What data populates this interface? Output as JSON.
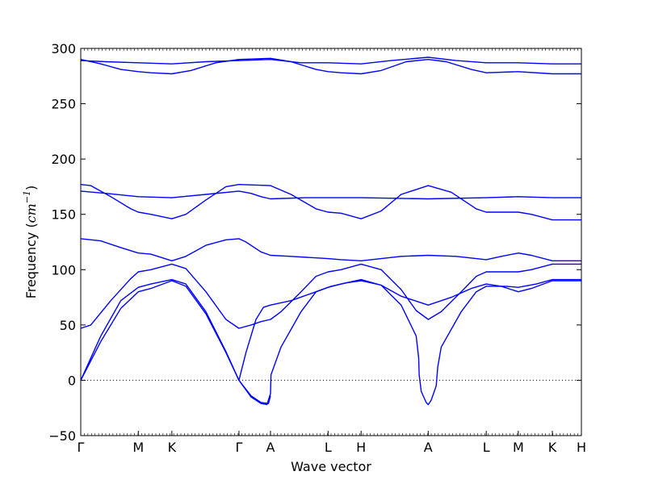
{
  "chart_data": {
    "type": "line",
    "title": "",
    "xlabel": "Wave vector",
    "ylabel": "Frequency (cm⁻¹)",
    "ylabel_prefix": "Frequency (",
    "ylabel_unit": "cm",
    "ylabel_exp": "−1",
    "ylabel_suffix": ")",
    "ylim": [
      -50,
      300
    ],
    "xlim": [
      0,
      1
    ],
    "yticks": [
      -50,
      0,
      50,
      100,
      150,
      200,
      250,
      300
    ],
    "xticks": [
      {
        "label": "Γ",
        "x": 0.0
      },
      {
        "label": "M",
        "x": 0.115
      },
      {
        "label": "K",
        "x": 0.182
      },
      {
        "label": "Γ",
        "x": 0.316
      },
      {
        "label": "A",
        "x": 0.379
      },
      {
        "label": "L",
        "x": 0.494
      },
      {
        "label": "H",
        "x": 0.56
      },
      {
        "label": "A",
        "x": 0.694
      },
      {
        "label": "L",
        "x": 0.81
      },
      {
        "label": "M",
        "x": 0.874
      },
      {
        "label": "K",
        "x": 0.942
      },
      {
        "label": "H",
        "x": 1.0
      }
    ],
    "zero_line": true,
    "grid": false,
    "line_color": "#0000ff",
    "series": [
      {
        "values": [
          [
            0,
            0
          ],
          [
            0.04,
            35
          ],
          [
            0.08,
            65
          ],
          [
            0.115,
            80
          ],
          [
            0.14,
            83
          ],
          [
            0.182,
            90
          ],
          [
            0.21,
            85
          ],
          [
            0.25,
            60
          ],
          [
            0.29,
            25
          ],
          [
            0.316,
            0
          ],
          [
            0.34,
            -14
          ],
          [
            0.36,
            -20
          ],
          [
            0.375,
            -21
          ],
          [
            0.379,
            -14
          ]
        ]
      },
      {
        "values": [
          [
            0,
            0
          ],
          [
            0.04,
            40
          ],
          [
            0.08,
            72
          ],
          [
            0.115,
            84
          ],
          [
            0.14,
            87
          ],
          [
            0.182,
            91
          ],
          [
            0.21,
            87
          ],
          [
            0.25,
            62
          ],
          [
            0.29,
            26
          ],
          [
            0.316,
            0
          ],
          [
            0.34,
            -15
          ],
          [
            0.36,
            -21
          ],
          [
            0.372,
            -22
          ],
          [
            0.379,
            -12
          ],
          [
            0.38,
            5
          ],
          [
            0.4,
            30
          ],
          [
            0.44,
            62
          ],
          [
            0.47,
            80
          ],
          [
            0.494,
            84
          ],
          [
            0.52,
            87
          ],
          [
            0.56,
            91
          ],
          [
            0.6,
            86
          ],
          [
            0.64,
            68
          ],
          [
            0.67,
            40
          ],
          [
            0.675,
            20
          ],
          [
            0.676,
            5
          ],
          [
            0.68,
            -10
          ],
          [
            0.69,
            -20
          ],
          [
            0.694,
            -22
          ],
          [
            0.7,
            -18
          ],
          [
            0.71,
            -5
          ],
          [
            0.713,
            12
          ],
          [
            0.72,
            30
          ],
          [
            0.76,
            62
          ],
          [
            0.79,
            80
          ],
          [
            0.81,
            85
          ],
          [
            0.85,
            85
          ],
          [
            0.874,
            84
          ],
          [
            0.91,
            87
          ],
          [
            0.942,
            91
          ],
          [
            1.0,
            91
          ]
        ]
      },
      {
        "values": [
          [
            0,
            47
          ],
          [
            0.02,
            50
          ],
          [
            0.06,
            72
          ],
          [
            0.1,
            92
          ],
          [
            0.115,
            98
          ],
          [
            0.14,
            100
          ],
          [
            0.182,
            105
          ],
          [
            0.21,
            101
          ],
          [
            0.25,
            80
          ],
          [
            0.29,
            55
          ],
          [
            0.316,
            47
          ],
          [
            0.34,
            50
          ],
          [
            0.36,
            53
          ],
          [
            0.379,
            55
          ],
          [
            0.4,
            62
          ],
          [
            0.44,
            80
          ],
          [
            0.47,
            94
          ],
          [
            0.494,
            98
          ],
          [
            0.52,
            100
          ],
          [
            0.56,
            105
          ],
          [
            0.6,
            100
          ],
          [
            0.64,
            82
          ],
          [
            0.67,
            63
          ],
          [
            0.694,
            55
          ],
          [
            0.72,
            62
          ],
          [
            0.76,
            80
          ],
          [
            0.79,
            94
          ],
          [
            0.81,
            98
          ],
          [
            0.874,
            98
          ],
          [
            0.9,
            100
          ],
          [
            0.942,
            105
          ],
          [
            1.0,
            105
          ]
        ]
      },
      {
        "values": [
          [
            0.316,
            0
          ],
          [
            0.33,
            25
          ],
          [
            0.35,
            55
          ],
          [
            0.365,
            66
          ],
          [
            0.379,
            68
          ],
          [
            0.42,
            72
          ],
          [
            0.47,
            80
          ],
          [
            0.5,
            85
          ],
          [
            0.53,
            88
          ],
          [
            0.56,
            90
          ],
          [
            0.6,
            86
          ],
          [
            0.64,
            76
          ],
          [
            0.694,
            68
          ],
          [
            0.74,
            75
          ],
          [
            0.78,
            83
          ],
          [
            0.81,
            87
          ],
          [
            0.84,
            85
          ],
          [
            0.874,
            80
          ],
          [
            0.9,
            83
          ],
          [
            0.942,
            90
          ],
          [
            1.0,
            90
          ]
        ]
      },
      {
        "values": [
          [
            0,
            128
          ],
          [
            0.04,
            126
          ],
          [
            0.08,
            120
          ],
          [
            0.115,
            115
          ],
          [
            0.14,
            114
          ],
          [
            0.182,
            108
          ],
          [
            0.21,
            112
          ],
          [
            0.25,
            122
          ],
          [
            0.29,
            127
          ],
          [
            0.316,
            128
          ],
          [
            0.33,
            125
          ],
          [
            0.36,
            116
          ],
          [
            0.379,
            113
          ],
          [
            0.42,
            112
          ],
          [
            0.494,
            110
          ],
          [
            0.52,
            109
          ],
          [
            0.56,
            108
          ],
          [
            0.6,
            110
          ],
          [
            0.64,
            112
          ],
          [
            0.694,
            113
          ],
          [
            0.75,
            112
          ],
          [
            0.81,
            109
          ],
          [
            0.84,
            112
          ],
          [
            0.874,
            115
          ],
          [
            0.9,
            113
          ],
          [
            0.942,
            108
          ],
          [
            1.0,
            108
          ]
        ]
      },
      {
        "values": [
          [
            0,
            177
          ],
          [
            0.02,
            176
          ],
          [
            0.06,
            166
          ],
          [
            0.1,
            155
          ],
          [
            0.115,
            152
          ],
          [
            0.14,
            150
          ],
          [
            0.182,
            146
          ],
          [
            0.21,
            150
          ],
          [
            0.25,
            163
          ],
          [
            0.29,
            175
          ],
          [
            0.316,
            177
          ],
          [
            0.379,
            176
          ],
          [
            0.42,
            168
          ],
          [
            0.47,
            155
          ],
          [
            0.494,
            152
          ],
          [
            0.52,
            151
          ],
          [
            0.56,
            146
          ],
          [
            0.6,
            153
          ],
          [
            0.64,
            168
          ],
          [
            0.694,
            176
          ],
          [
            0.74,
            170
          ],
          [
            0.79,
            155
          ],
          [
            0.81,
            152
          ],
          [
            0.874,
            152
          ],
          [
            0.9,
            150
          ],
          [
            0.942,
            145
          ],
          [
            1.0,
            145
          ]
        ]
      },
      {
        "values": [
          [
            0,
            171
          ],
          [
            0.05,
            169
          ],
          [
            0.115,
            166
          ],
          [
            0.182,
            165
          ],
          [
            0.25,
            168
          ],
          [
            0.316,
            171
          ],
          [
            0.34,
            169
          ],
          [
            0.36,
            166
          ],
          [
            0.379,
            164
          ],
          [
            0.45,
            165
          ],
          [
            0.494,
            165
          ],
          [
            0.56,
            165
          ],
          [
            0.694,
            164
          ],
          [
            0.81,
            165
          ],
          [
            0.874,
            166
          ],
          [
            0.942,
            165
          ],
          [
            1.0,
            165
          ]
        ]
      },
      {
        "values": [
          [
            0,
            290
          ],
          [
            0.04,
            286
          ],
          [
            0.08,
            281
          ],
          [
            0.115,
            279
          ],
          [
            0.14,
            278
          ],
          [
            0.182,
            277
          ],
          [
            0.22,
            280
          ],
          [
            0.27,
            287
          ],
          [
            0.316,
            290
          ],
          [
            0.379,
            291
          ],
          [
            0.42,
            288
          ],
          [
            0.47,
            281
          ],
          [
            0.494,
            279
          ],
          [
            0.52,
            278
          ],
          [
            0.56,
            277
          ],
          [
            0.6,
            280
          ],
          [
            0.65,
            288
          ],
          [
            0.694,
            290
          ],
          [
            0.73,
            288
          ],
          [
            0.78,
            281
          ],
          [
            0.81,
            278
          ],
          [
            0.874,
            279
          ],
          [
            0.942,
            277
          ],
          [
            1.0,
            277
          ]
        ]
      },
      {
        "values": [
          [
            0,
            289
          ],
          [
            0.05,
            288
          ],
          [
            0.115,
            287
          ],
          [
            0.182,
            286
          ],
          [
            0.25,
            288
          ],
          [
            0.316,
            289
          ],
          [
            0.379,
            290
          ],
          [
            0.44,
            287
          ],
          [
            0.494,
            287
          ],
          [
            0.56,
            286
          ],
          [
            0.62,
            289
          ],
          [
            0.694,
            292
          ],
          [
            0.75,
            289
          ],
          [
            0.81,
            287
          ],
          [
            0.874,
            287
          ],
          [
            0.942,
            286
          ],
          [
            1.0,
            286
          ]
        ]
      }
    ]
  }
}
